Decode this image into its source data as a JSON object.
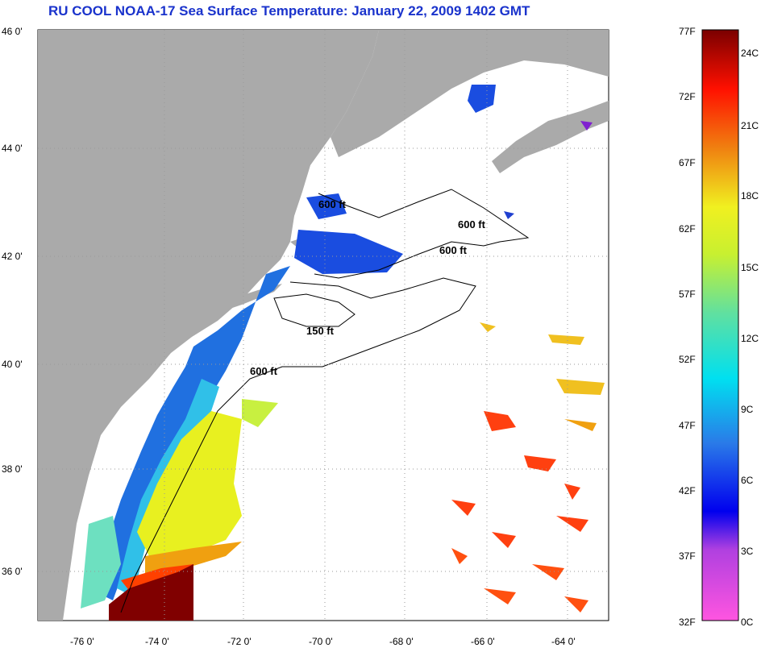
{
  "title": "RU COOL  NOAA-17  Sea Surface Temperature:  January 22, 2009 1402 GMT",
  "map": {
    "lat_ticks": [
      "46 0'",
      "44 0'",
      "42 0'",
      "40 0'",
      "38 0'",
      "36 0'"
    ],
    "lon_ticks": [
      "-76 0'",
      "-74 0'",
      "-72 0'",
      "-70 0'",
      "-68 0'",
      "-66 0'",
      "-64 0'"
    ],
    "contours": [
      "600 ft",
      "600 ft",
      "600 ft",
      "150 ft",
      "600 ft"
    ]
  },
  "colorbar": {
    "f_ticks": [
      "77F",
      "72F",
      "67F",
      "62F",
      "57F",
      "52F",
      "47F",
      "42F",
      "37F",
      "32F"
    ],
    "c_ticks": [
      "24C",
      "21C",
      "18C",
      "15C",
      "12C",
      "9C",
      "6C",
      "3C",
      "0C"
    ]
  },
  "colors": {
    "land": "#aaaaaa",
    "title": "#1a33cc"
  }
}
